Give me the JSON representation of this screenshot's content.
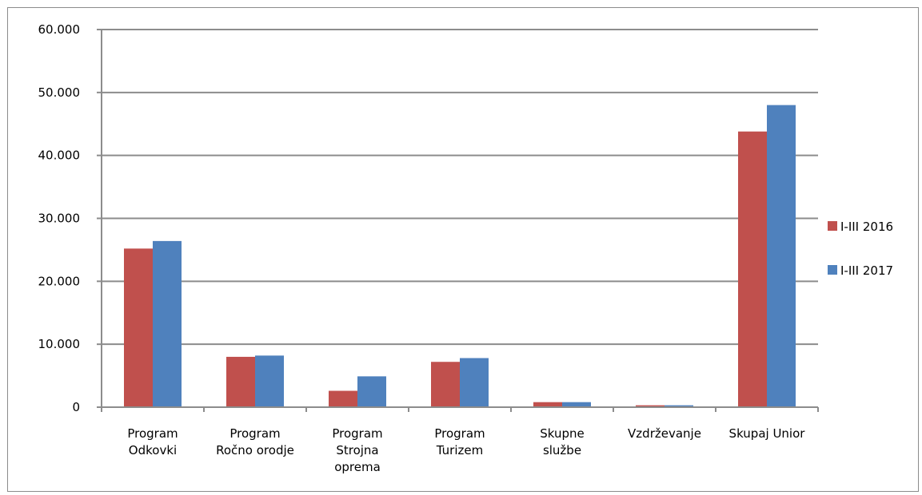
{
  "chart_data": {
    "type": "bar",
    "categories": [
      [
        "Program",
        "Odkovki"
      ],
      [
        "Program",
        "Ročno orodje"
      ],
      [
        "Program",
        "Strojna",
        "oprema"
      ],
      [
        "Program",
        "Turizem"
      ],
      [
        "Skupne",
        "službe"
      ],
      [
        "Vzdrževanje"
      ],
      [
        "Skupaj Unior"
      ]
    ],
    "series": [
      {
        "name": "I-III 2016",
        "color": "#c0504d",
        "values": [
          25200,
          8000,
          2600,
          7200,
          800,
          300,
          43800
        ]
      },
      {
        "name": "I-III 2017",
        "color": "#4f81bd",
        "values": [
          26400,
          8200,
          4900,
          7800,
          800,
          300,
          48000
        ]
      }
    ],
    "ylim": [
      0,
      60000
    ],
    "yticks": [
      0,
      10000,
      20000,
      30000,
      40000,
      50000,
      60000
    ],
    "ytick_labels": [
      "0",
      "10.000",
      "20.000",
      "30.000",
      "40.000",
      "50.000",
      "60.000"
    ],
    "grid": true,
    "legend_position": "right"
  }
}
